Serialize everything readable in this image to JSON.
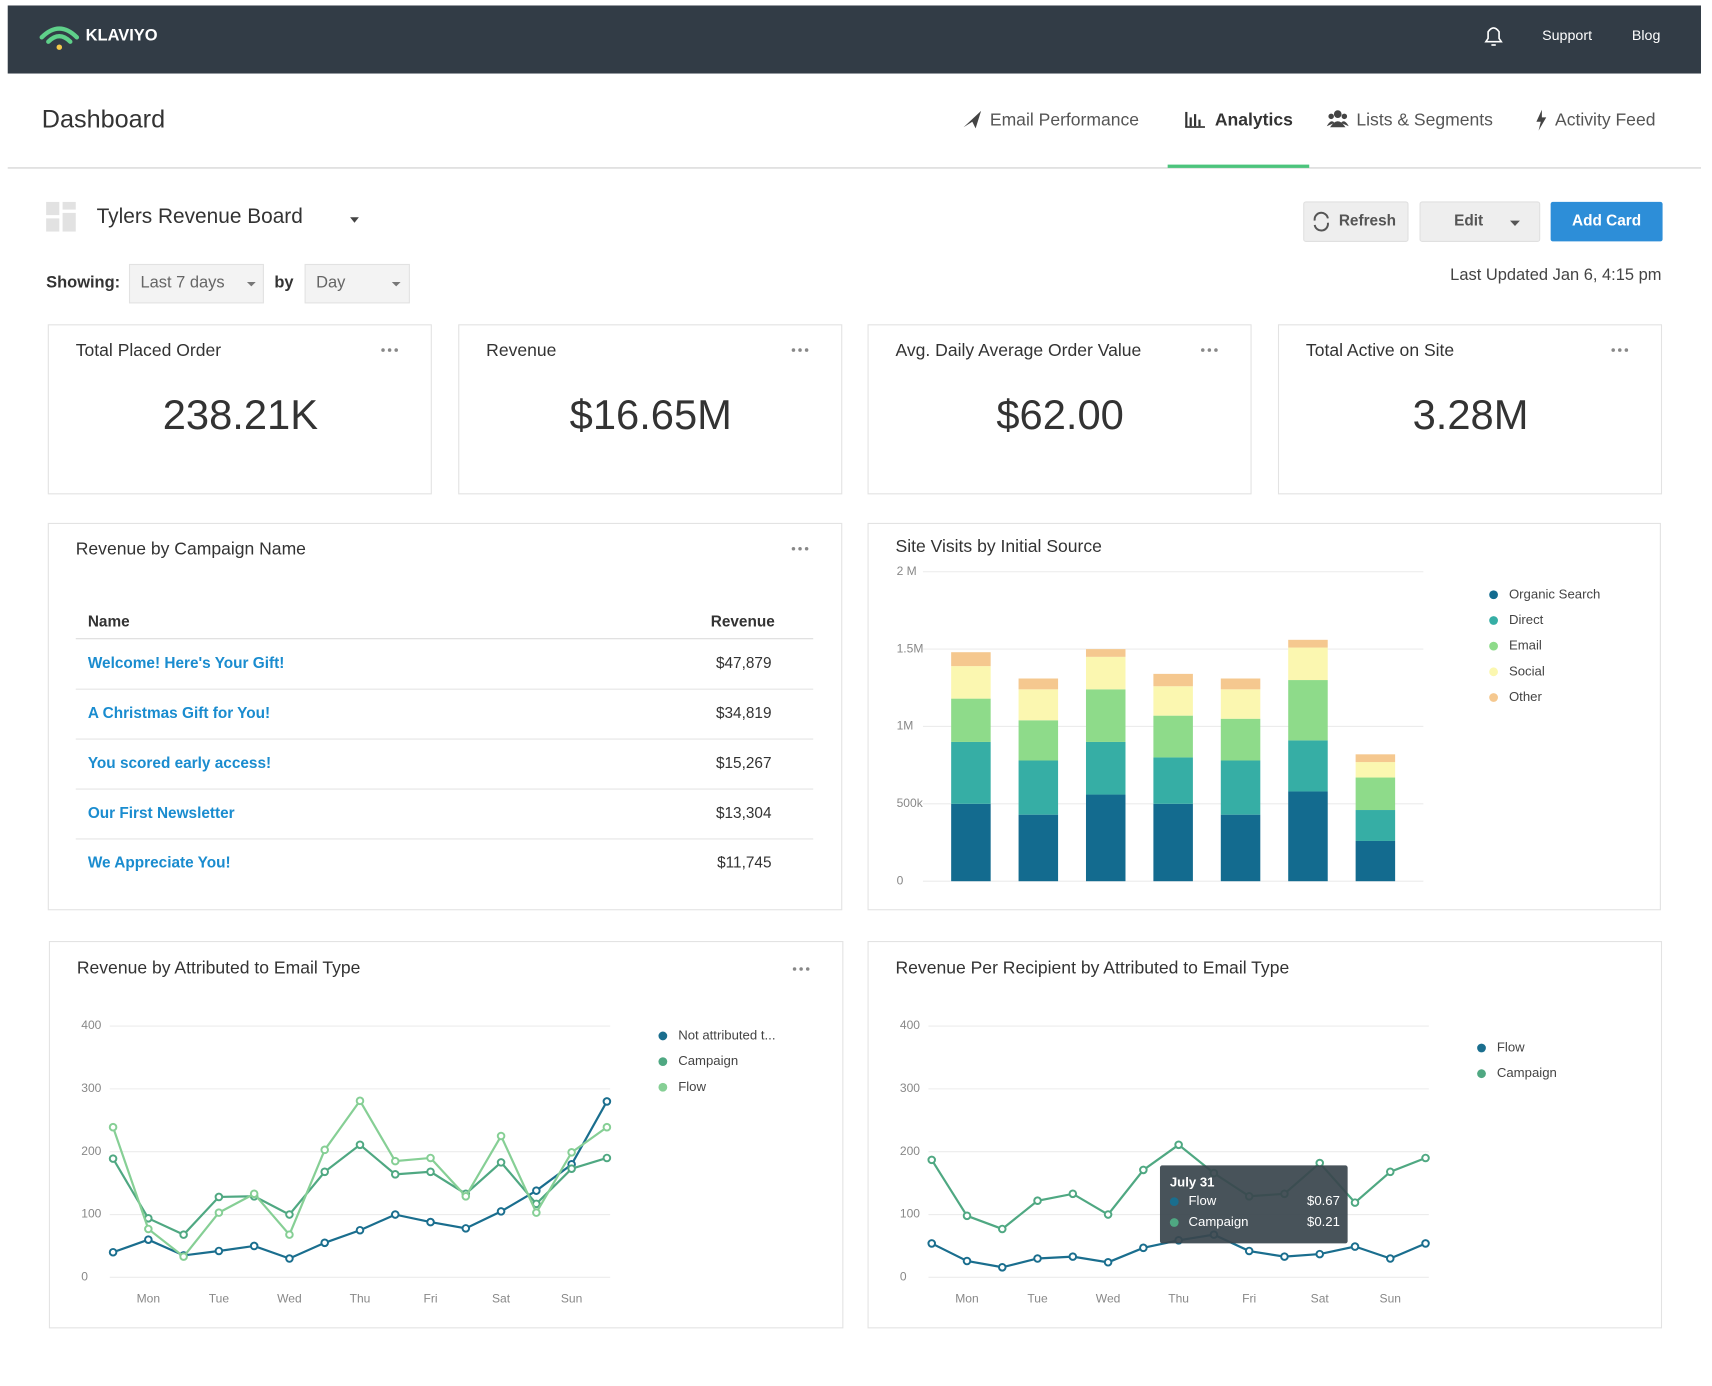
{
  "header": {
    "logo": "KLAVIYO",
    "links": [
      "Support",
      "Blog"
    ]
  },
  "nav": {
    "title": "Dashboard",
    "tabs": [
      "Email Performance",
      "Analytics",
      "Lists & Segments",
      "Activity Feed"
    ],
    "active": 1
  },
  "board": {
    "name": "Tylers Revenue Board",
    "buttons": [
      "Refresh",
      "Edit",
      "Add Card"
    ],
    "showing_label": "Showing:",
    "range": "Last 7 days",
    "by_label": "by",
    "interval": "Day",
    "last_updated": "Last Updated Jan 6, 4:15 pm"
  },
  "kpis": [
    {
      "title": "Total Placed Order",
      "value": "238.21K"
    },
    {
      "title": "Revenue",
      "value": "$16.65M"
    },
    {
      "title": "Avg. Daily Average Order Value",
      "value": "$62.00"
    },
    {
      "title": "Total Active on Site",
      "value": "3.28M"
    }
  ],
  "table": {
    "title": "Revenue by Campaign Name",
    "columns": [
      "Name",
      "Revenue"
    ],
    "rows": [
      [
        "Welcome! Here's Your Gift!",
        "$47,879"
      ],
      [
        "A Christmas Gift for You!",
        "$34,819"
      ],
      [
        "You scored early access!",
        "$15,267"
      ],
      [
        "Our First Newsletter",
        "$13,304"
      ],
      [
        "We Appreciate You!",
        "$11,745"
      ]
    ]
  },
  "chart_data": [
    {
      "type": "bar",
      "stacked": true,
      "title": "Site Visits by Initial Source",
      "categories": [
        null,
        null,
        null,
        null,
        null,
        null,
        null
      ],
      "series": [
        {
          "name": "Organic Search",
          "color": "#136b8f",
          "values": [
            500000,
            430000,
            560000,
            500000,
            430000,
            580000,
            260000
          ]
        },
        {
          "name": "Direct",
          "color": "#36aea5",
          "values": [
            400000,
            350000,
            340000,
            300000,
            350000,
            330000,
            200000
          ]
        },
        {
          "name": "Email",
          "color": "#8edb8a",
          "values": [
            280000,
            260000,
            340000,
            270000,
            270000,
            390000,
            210000
          ]
        },
        {
          "name": "Social",
          "color": "#fbf7b0",
          "values": [
            210000,
            200000,
            210000,
            190000,
            190000,
            210000,
            100000
          ]
        },
        {
          "name": "Other",
          "color": "#f5c88f",
          "values": [
            90000,
            70000,
            50000,
            80000,
            70000,
            50000,
            50000
          ]
        }
      ],
      "ylim": [
        0,
        2000000
      ],
      "yticks": [
        {
          "value": 0,
          "label": "0"
        },
        {
          "value": 500000,
          "label": "500k"
        },
        {
          "value": 1000000,
          "label": "1M"
        },
        {
          "value": 1500000,
          "label": "1.5M"
        },
        {
          "value": 2000000,
          "label": "2 M"
        }
      ],
      "grid": true,
      "legend": "right"
    },
    {
      "type": "line",
      "title": "Revenue by Attributed to Email Type",
      "categories": [
        null,
        "Mon",
        null,
        "Tue",
        null,
        "Wed",
        null,
        "Thu",
        null,
        "Fri",
        null,
        "Sat",
        null,
        "Sun",
        null
      ],
      "series": [
        {
          "name": "Not attributed t...",
          "color": "#1a6e8e",
          "values": [
            40,
            60,
            35,
            42,
            50,
            30,
            55,
            75,
            100,
            88,
            78,
            105,
            138,
            180,
            280
          ]
        },
        {
          "name": "Campaign",
          "color": "#4fa882",
          "values": [
            189,
            94,
            68,
            128,
            129,
            100,
            168,
            211,
            164,
            168,
            133,
            183,
            117,
            173,
            190
          ]
        },
        {
          "name": "Flow",
          "color": "#86cf95",
          "values": [
            239,
            77,
            33,
            103,
            133,
            68,
            203,
            281,
            185,
            190,
            129,
            225,
            103,
            199,
            239
          ]
        }
      ],
      "ylim": [
        0,
        400
      ],
      "yticks": [
        0,
        100,
        200,
        300,
        400
      ],
      "grid": true,
      "legend": "right"
    },
    {
      "type": "line",
      "title": "Revenue Per Recipient by Attributed to Email Type",
      "categories": [
        null,
        "Mon",
        null,
        "Tue",
        null,
        "Wed",
        null,
        "Thu",
        null,
        "Fri",
        null,
        "Sat",
        null,
        "Sun",
        null
      ],
      "series": [
        {
          "name": "Flow",
          "color": "#1a6e8e",
          "values": [
            54,
            26,
            16,
            30,
            33,
            24,
            47,
            59,
            68,
            42,
            33,
            37,
            49,
            30,
            54
          ]
        },
        {
          "name": "Campaign",
          "color": "#4fa882",
          "values": [
            187,
            98,
            77,
            122,
            133,
            100,
            171,
            211,
            166,
            129,
            133,
            182,
            119,
            168,
            190
          ]
        }
      ],
      "ylim": [
        0,
        400
      ],
      "yticks": [
        0,
        100,
        200,
        300,
        400
      ],
      "grid": true,
      "legend": "right",
      "tooltip": {
        "title": "July 31",
        "values": [
          "$0.67",
          "$0.21"
        ]
      }
    }
  ]
}
